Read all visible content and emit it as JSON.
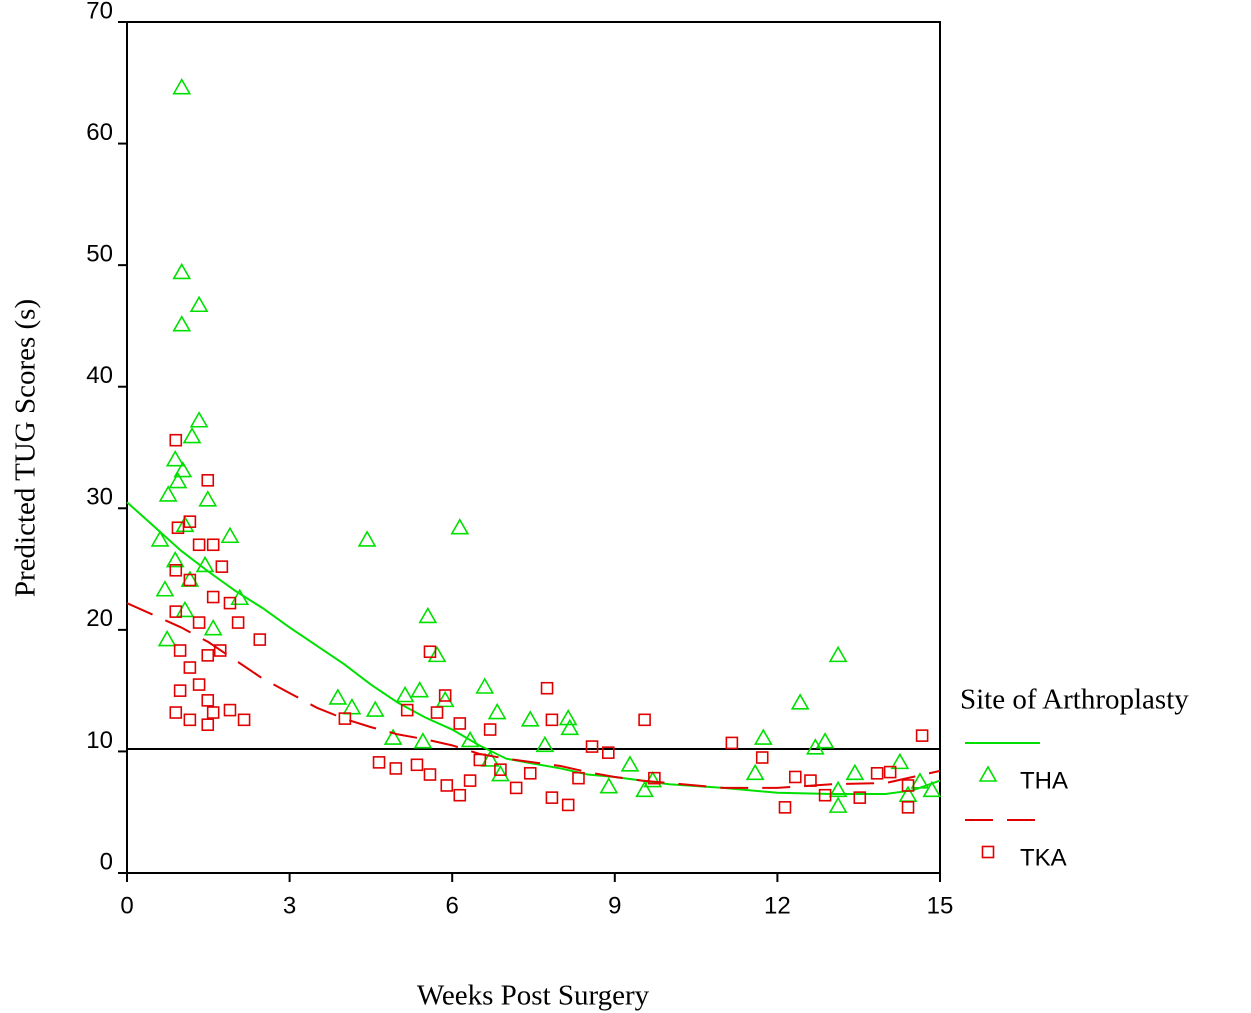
{
  "chart_data": {
    "type": "scatter",
    "x_label": "Weeks Post Surgery",
    "y_label": "Predicted TUG Scores (s)",
    "legend_title": "Site of Arthroplasty",
    "legend_position": "right",
    "xlim": [
      0,
      15
    ],
    "xticks": [
      0,
      3,
      6,
      9,
      12,
      15
    ],
    "ylim": [
      0,
      70
    ],
    "yticks": [
      0,
      10,
      20,
      30,
      40,
      50,
      60,
      70
    ],
    "reference_y": 10.2,
    "series": [
      {
        "name": "THA",
        "color": "#00e000",
        "marker": "triangle",
        "dash": false,
        "x": [
          1.01,
          1.01,
          1.33,
          1.01,
          1.33,
          1.2,
          0.89,
          1.03,
          0.76,
          1.49,
          0.94,
          1.9,
          0.61,
          1.07,
          0.89,
          1.44,
          0.7,
          1.16,
          2.08,
          1.59,
          0.74,
          1.07,
          4.43,
          6.14,
          5.55,
          5.72,
          3.89,
          4.15,
          4.58,
          5.13,
          5.4,
          6.6,
          5.87,
          6.83,
          7.44,
          8.14,
          8.17,
          4.91,
          5.46,
          6.33,
          6.7,
          6.89,
          7.71,
          9.28,
          8.89,
          9.55,
          9.7,
          11.59,
          11.74,
          12.42,
          13.12,
          12.88,
          12.7,
          13.12,
          13.12,
          13.43,
          14.26,
          14.41,
          14.63,
          14.85
        ],
        "values": [
          64.6,
          49.4,
          46.7,
          45.1,
          37.2,
          35.9,
          34.0,
          33.1,
          31.1,
          30.7,
          32.2,
          27.7,
          27.4,
          28.6,
          25.7,
          25.3,
          23.3,
          24.1,
          22.6,
          20.1,
          19.2,
          21.6,
          27.4,
          28.4,
          21.1,
          17.9,
          14.4,
          13.6,
          13.4,
          14.6,
          15.0,
          15.3,
          14.2,
          13.2,
          12.6,
          12.7,
          11.9,
          11.1,
          10.8,
          10.9,
          9.3,
          8.1,
          10.5,
          8.9,
          7.1,
          6.8,
          7.6,
          8.2,
          11.1,
          14.0,
          17.9,
          10.8,
          10.3,
          6.8,
          5.5,
          8.2,
          9.1,
          6.4,
          7.5,
          6.8
        ],
        "fit_x": [
          0,
          0.5,
          1,
          1.5,
          2,
          2.5,
          3,
          3.5,
          4,
          4.5,
          5,
          5.5,
          6,
          6.5,
          7,
          7.5,
          8,
          8.5,
          9,
          9.5,
          10,
          11,
          12,
          13,
          14,
          14.5,
          15
        ],
        "fit_y": [
          30.5,
          28.5,
          26.5,
          24.8,
          23.2,
          21.8,
          20.2,
          18.7,
          17.2,
          15.5,
          14.0,
          12.8,
          11.8,
          10.5,
          9.4,
          9.0,
          8.6,
          8.1,
          7.9,
          7.6,
          7.3,
          7.0,
          6.6,
          6.5,
          6.5,
          6.8,
          7.6
        ]
      },
      {
        "name": "TKA",
        "color": "#e00000",
        "marker": "square",
        "dash": true,
        "x": [
          0.9,
          1.49,
          0.94,
          1.16,
          1.33,
          1.59,
          1.75,
          0.9,
          1.16,
          1.59,
          1.9,
          2.05,
          0.9,
          1.33,
          2.45,
          0.98,
          1.72,
          1.49,
          1.16,
          1.33,
          0.98,
          1.49,
          0.9,
          1.9,
          1.59,
          1.16,
          1.49,
          2.16,
          4.02,
          5.59,
          5.87,
          5.17,
          5.72,
          6.14,
          6.7,
          7.75,
          7.84,
          4.65,
          4.96,
          5.35,
          5.59,
          5.9,
          6.14,
          6.33,
          6.51,
          6.89,
          7.18,
          7.44,
          7.84,
          8.14,
          8.33,
          8.58,
          8.88,
          9.55,
          9.73,
          11.16,
          11.72,
          12.14,
          12.33,
          12.61,
          12.88,
          13.52,
          13.84,
          14.08,
          14.41,
          14.67,
          14.41
        ],
        "values": [
          35.6,
          32.3,
          28.4,
          28.9,
          27.0,
          27.0,
          25.2,
          24.9,
          24.1,
          22.7,
          22.2,
          20.6,
          21.5,
          20.6,
          19.2,
          18.3,
          18.3,
          17.9,
          16.9,
          15.5,
          15.0,
          14.2,
          13.2,
          13.4,
          13.2,
          12.6,
          12.2,
          12.6,
          12.7,
          18.2,
          14.6,
          13.4,
          13.2,
          12.3,
          11.8,
          15.2,
          12.6,
          9.1,
          8.6,
          8.9,
          8.1,
          7.2,
          6.4,
          7.6,
          9.3,
          8.5,
          7.0,
          8.2,
          6.2,
          5.6,
          7.8,
          10.4,
          9.9,
          12.6,
          7.8,
          10.7,
          9.5,
          5.4,
          7.9,
          7.6,
          6.4,
          6.2,
          8.2,
          8.3,
          5.4,
          11.3,
          7.2
        ],
        "fit_x": [
          0,
          0.5,
          1,
          1.5,
          2,
          2.5,
          3,
          3.5,
          4,
          4.5,
          5,
          5.5,
          6,
          6.5,
          7,
          7.5,
          8,
          8.5,
          9,
          9.5,
          10,
          11,
          12,
          13,
          14,
          15
        ],
        "fit_y": [
          22.2,
          21.2,
          20.2,
          19.0,
          17.5,
          16.0,
          14.8,
          13.6,
          12.7,
          12.0,
          11.4,
          11.0,
          10.5,
          9.8,
          9.4,
          9.1,
          8.8,
          8.3,
          7.9,
          7.6,
          7.4,
          7.0,
          7.0,
          7.3,
          7.4,
          8.4
        ]
      }
    ]
  }
}
